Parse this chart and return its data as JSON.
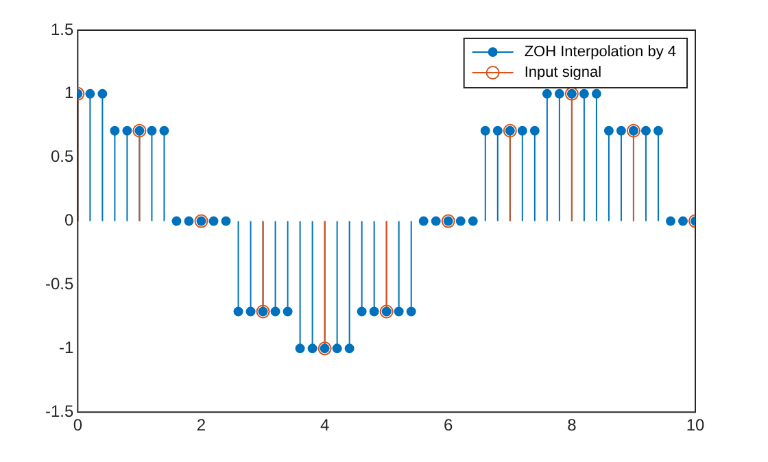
{
  "chart_data": {
    "type": "lollipop",
    "xlim": [
      0,
      10
    ],
    "xticks": [
      0,
      2,
      4,
      6,
      8,
      10
    ],
    "ylim": [
      -1.5,
      1.5
    ],
    "yticks": [
      -1.5,
      -1,
      -0.5,
      0,
      0.5,
      1,
      1.5
    ],
    "grid": false,
    "legend": "top right",
    "marker": "circle",
    "series": [
      {
        "name": "ZOH Interpolation by 4",
        "color": "#0072bd",
        "x": [
          0,
          0.2,
          0.4,
          0.6,
          0.8,
          1,
          1.2,
          1.4,
          1.6,
          1.8,
          2,
          2.2,
          2.4,
          2.6,
          2.8,
          3,
          3.2,
          3.4,
          3.6,
          3.8,
          4,
          4.2,
          4.4,
          4.6,
          4.8,
          5,
          5.2,
          5.4,
          5.6,
          5.8,
          6,
          6.2,
          6.4,
          6.6,
          6.8,
          7,
          7.2,
          7.4,
          7.6,
          7.8,
          8,
          8.2,
          8.4,
          8.6,
          8.8,
          9,
          9.2,
          9.4,
          9.6,
          9.8,
          10
        ],
        "values": [
          1,
          1,
          1,
          0.71,
          0.71,
          0.71,
          0.71,
          0.71,
          0,
          0,
          0,
          0,
          0,
          -0.71,
          -0.71,
          -0.71,
          -0.71,
          -0.71,
          -1,
          -1,
          -1,
          -1,
          -1,
          -0.71,
          -0.71,
          -0.71,
          -0.71,
          -0.71,
          0,
          0,
          0,
          0,
          0,
          0.71,
          0.71,
          0.71,
          0.71,
          0.71,
          1,
          1,
          1,
          1,
          1,
          0.71,
          0.71,
          0.71,
          0.71,
          0.71,
          0,
          0,
          0
        ]
      },
      {
        "name": "Input signal",
        "color": "#d95319",
        "x": [
          0,
          1,
          2,
          3,
          4,
          5,
          6,
          7,
          8,
          9,
          10
        ],
        "values": [
          1,
          0.71,
          0,
          -0.71,
          -1,
          -0.71,
          0,
          0.71,
          1,
          0.71,
          0
        ]
      }
    ]
  }
}
